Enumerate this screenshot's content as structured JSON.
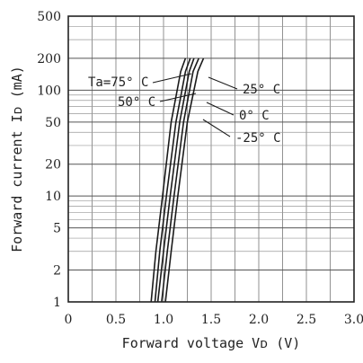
{
  "chart_data": {
    "type": "line",
    "title": "",
    "xlabel": "Forward voltage Vᴅ (V)",
    "ylabel": "Forward current Iᴅ (mA)",
    "xlim": [
      0,
      3.0
    ],
    "ylim": [
      1,
      500
    ],
    "yscale": "log",
    "grid": true,
    "x_ticks": [
      "0",
      "0.5",
      "1.0",
      "1.5",
      "2.0",
      "2.5",
      "3.0"
    ],
    "y_ticks": [
      "1",
      "2",
      "5",
      "10",
      "20",
      "50",
      "100",
      "200",
      "500"
    ],
    "series": [
      {
        "name": "Ta=75° C",
        "x": [
          0.87,
          0.92,
          0.99,
          1.08,
          1.18,
          1.23
        ],
        "y": [
          1,
          3,
          10,
          50,
          150,
          200
        ]
      },
      {
        "name": "50° C",
        "x": [
          0.91,
          0.96,
          1.03,
          1.13,
          1.23,
          1.28
        ],
        "y": [
          1,
          3,
          10,
          50,
          150,
          200
        ]
      },
      {
        "name": "25° C",
        "x": [
          0.94,
          1.0,
          1.07,
          1.17,
          1.27,
          1.32
        ],
        "y": [
          1,
          3,
          10,
          50,
          150,
          200
        ]
      },
      {
        "name": "0° C",
        "x": [
          0.98,
          1.04,
          1.11,
          1.21,
          1.31,
          1.37
        ],
        "y": [
          1,
          3,
          10,
          50,
          150,
          200
        ]
      },
      {
        "name": "-25° C",
        "x": [
          1.02,
          1.08,
          1.15,
          1.25,
          1.36,
          1.42
        ],
        "y": [
          1,
          3,
          10,
          50,
          150,
          200
        ]
      }
    ]
  }
}
